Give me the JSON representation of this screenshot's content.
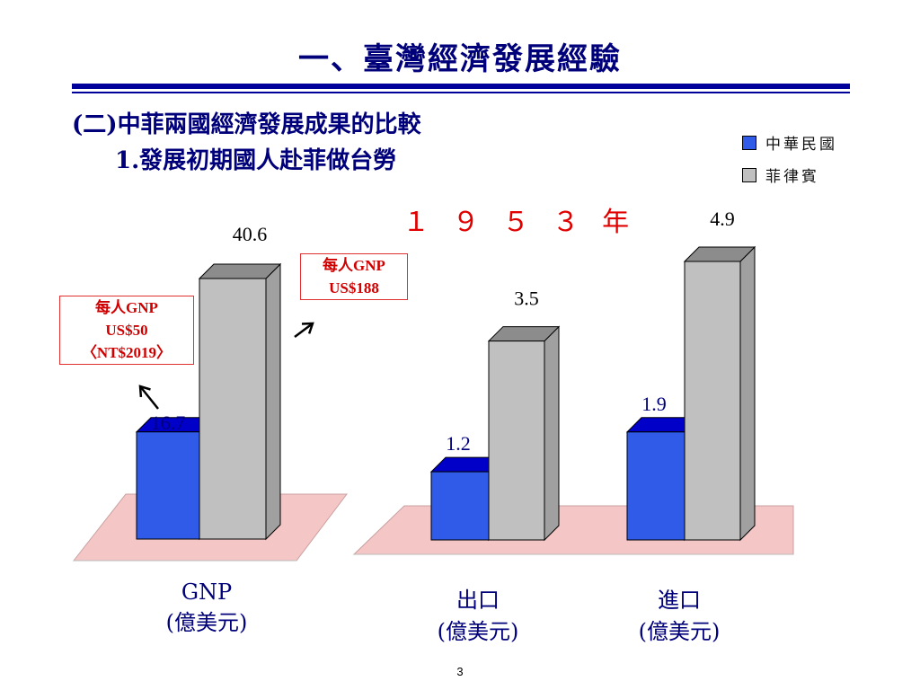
{
  "header": {
    "title": "一、臺灣經濟發展經驗",
    "subtitle": "(二)中菲兩國經濟發展成果的比較",
    "subtitle2": "1.發展初期國人赴菲做台勞"
  },
  "year_label": "１ ９ ５ ３ 年",
  "legend": [
    {
      "label": "中華民國",
      "color": "#2f5be8"
    },
    {
      "label": "菲律賓",
      "color": "#c0c0c0"
    }
  ],
  "notes": {
    "roc": [
      "每人GNP",
      "US$50",
      "〈NT$2019〉"
    ],
    "ph": [
      "每人GNP",
      "US$188"
    ]
  },
  "categories_display": [
    {
      "line1": "GNP",
      "line2": "(億美元)"
    },
    {
      "line1": "出口",
      "line2": "(億美元)"
    },
    {
      "line1": "進口",
      "line2": "(億美元)"
    }
  ],
  "chart_data": [
    {
      "type": "bar",
      "categories": [
        "GNP (億美元)"
      ],
      "series": [
        {
          "name": "中華民國",
          "values": [
            16.7
          ]
        },
        {
          "name": "菲律賓",
          "values": [
            40.6
          ]
        }
      ]
    },
    {
      "type": "bar",
      "categories": [
        "出口 (億美元)",
        "進口 (億美元)"
      ],
      "series": [
        {
          "name": "中華民國",
          "values": [
            1.2,
            1.9
          ]
        },
        {
          "name": "菲律賓",
          "values": [
            3.5,
            4.9
          ]
        }
      ]
    }
  ],
  "value_labels": {
    "gnp_roc": "16.7",
    "gnp_ph": "40.6",
    "exp_roc": "1.2",
    "exp_ph": "3.5",
    "imp_roc": "1.9",
    "imp_ph": "4.9"
  },
  "page_number": "3"
}
